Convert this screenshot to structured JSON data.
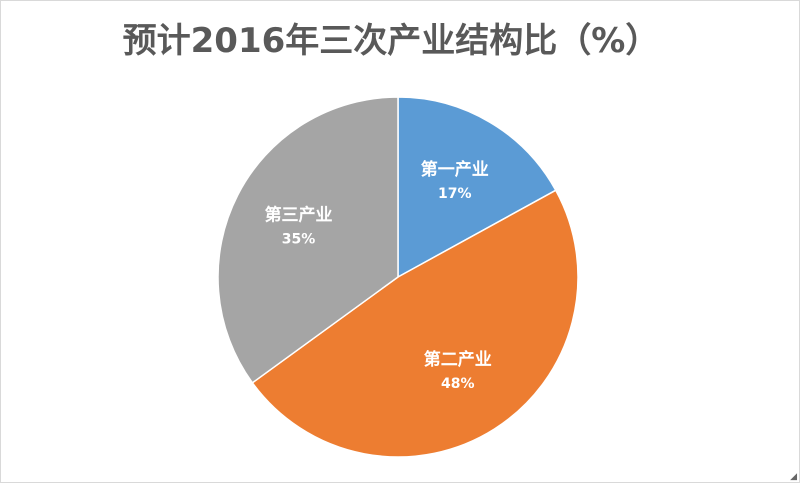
{
  "chart_data": {
    "type": "pie",
    "title": "预计2016年三次产业结构比（%）",
    "slices": [
      {
        "name": "第一产业",
        "value": 17,
        "label": "17%",
        "color": "#5b9bd5"
      },
      {
        "name": "第二产业",
        "value": 48,
        "label": "48%",
        "color": "#ed7d31"
      },
      {
        "name": "第三产业",
        "value": 35,
        "label": "35%",
        "color": "#a5a5a5"
      }
    ],
    "start_angle_deg": 0,
    "direction": "clockwise",
    "legend": "none",
    "data_labels": "inside"
  }
}
